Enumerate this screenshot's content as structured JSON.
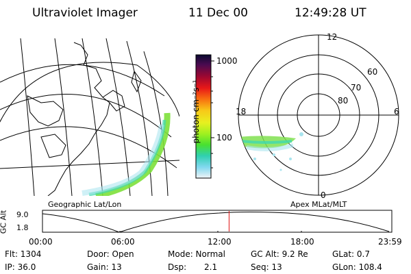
{
  "header": {
    "instrument": "Ultraviolet Imager",
    "date": "11 Dec 00",
    "time": "12:49:28 UT"
  },
  "colorbar": {
    "label": "photon cm⁻²s⁻¹",
    "ticks": [
      "1000",
      "100"
    ],
    "colors": [
      "#08083a",
      "#3a0a4c",
      "#7a0d4a",
      "#b00b2a",
      "#e0101a",
      "#f04a10",
      "#f88a10",
      "#f8c818",
      "#f0f020",
      "#c0f020",
      "#80f020",
      "#40e040",
      "#30d0a0",
      "#40c0d8",
      "#a0e0f0",
      "#e8f4f8"
    ]
  },
  "geo_panel": {
    "label": "Geographic Lat/Lon"
  },
  "polar_panel": {
    "label": "Apex MLat/MLT",
    "mlt_labels": [
      "12",
      "18",
      "6",
      "0"
    ],
    "lat_labels": [
      "60",
      "70",
      "80"
    ]
  },
  "altitude_plot": {
    "ylabel": "GC Alt",
    "yticks": [
      "9.0",
      "1.8"
    ],
    "xticks": [
      "00:00",
      "06:00",
      "12:00",
      "18:00",
      "23:59"
    ],
    "current_time_hours": 12.82,
    "marker_color": "#e01010"
  },
  "info": {
    "flt": "Flt: 1304",
    "door": "Door: Open",
    "mode": "Mode: Normal",
    "gc_alt": "GC Alt: 9.2 Re",
    "glat": "GLat:    0.7",
    "ip": "IP: 36.0",
    "gain": "Gain: 13",
    "dsp_label": "Dsp:",
    "dsp_value": "2.1",
    "seq": "Seq: 13",
    "glon": "GLon: 108.4"
  }
}
